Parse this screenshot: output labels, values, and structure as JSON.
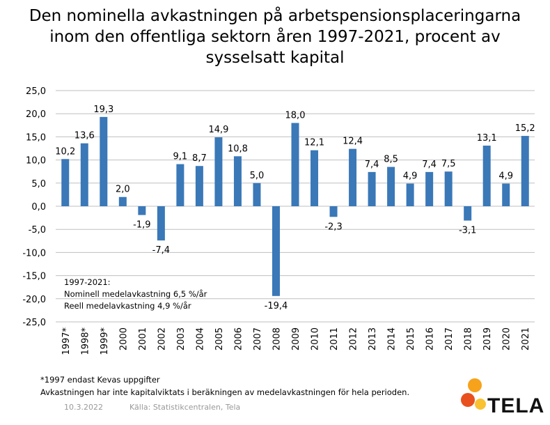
{
  "title_lines": [
    "Den nominella avkastningen på arbetspensionsplaceringarna",
    "inom den offentliga sektorn åren 1997-2021, procent av",
    "sysselsatt kapital"
  ],
  "note": {
    "period": "1997-2021:",
    "nominal": "Nominell medelavkastning 6,5 %/år",
    "real": "Reell medelavkastning 4,9 %/år"
  },
  "footnotes": {
    "kevas": "*1997 endast Kevas uppgifter",
    "weighting": "Avkastningen har inte kapitalviktats i beräkningen av medelavkastningen för hela perioden."
  },
  "date": "10.3.2022",
  "source": "Källa: Statistikcentralen, Tela",
  "logo": {
    "text": "TELA",
    "dot_colors": [
      "#f7a21b",
      "#e8501e",
      "#f9c233"
    ]
  },
  "colors": {
    "bar": "#3a78b8",
    "grid": "#bfbfbf"
  },
  "chart_data": {
    "type": "bar",
    "categories": [
      "1997*",
      "1998*",
      "1999*",
      "2000",
      "2001",
      "2002",
      "2003",
      "2004",
      "2005",
      "2006",
      "2007",
      "2008",
      "2009",
      "2010",
      "2011",
      "2012",
      "2013",
      "2014",
      "2015",
      "2016",
      "2017",
      "2018",
      "2019",
      "2020",
      "2021"
    ],
    "values": [
      10.2,
      13.6,
      19.3,
      2.0,
      -1.9,
      -7.4,
      9.1,
      8.7,
      14.9,
      10.8,
      5.0,
      -19.4,
      18.0,
      12.1,
      -2.3,
      12.4,
      7.4,
      8.5,
      4.9,
      7.4,
      7.5,
      -3.1,
      13.1,
      4.9,
      15.2
    ],
    "value_labels": [
      "10,2",
      "13,6",
      "19,3",
      "2,0",
      "-1,9",
      "-7,4",
      "9,1",
      "8,7",
      "14,9",
      "10,8",
      "5,0",
      "-19,4",
      "18,0",
      "12,1",
      "-2,3",
      "12,4",
      "7,4",
      "8,5",
      "4,9",
      "7,4",
      "7,5",
      "-3,1",
      "13,1",
      "4,9",
      "15,2"
    ],
    "ylim": [
      -25,
      25
    ],
    "yticks": [
      25,
      20,
      15,
      10,
      5,
      0,
      -5,
      -10,
      -15,
      -20,
      -25
    ],
    "ytick_labels": [
      "25,0",
      "20,0",
      "15,0",
      "10,0",
      "5,0",
      "0,0",
      "-5,0",
      "-10,0",
      "-15,0",
      "-20,0",
      "-25,0"
    ],
    "grid": true,
    "legend": "none"
  }
}
